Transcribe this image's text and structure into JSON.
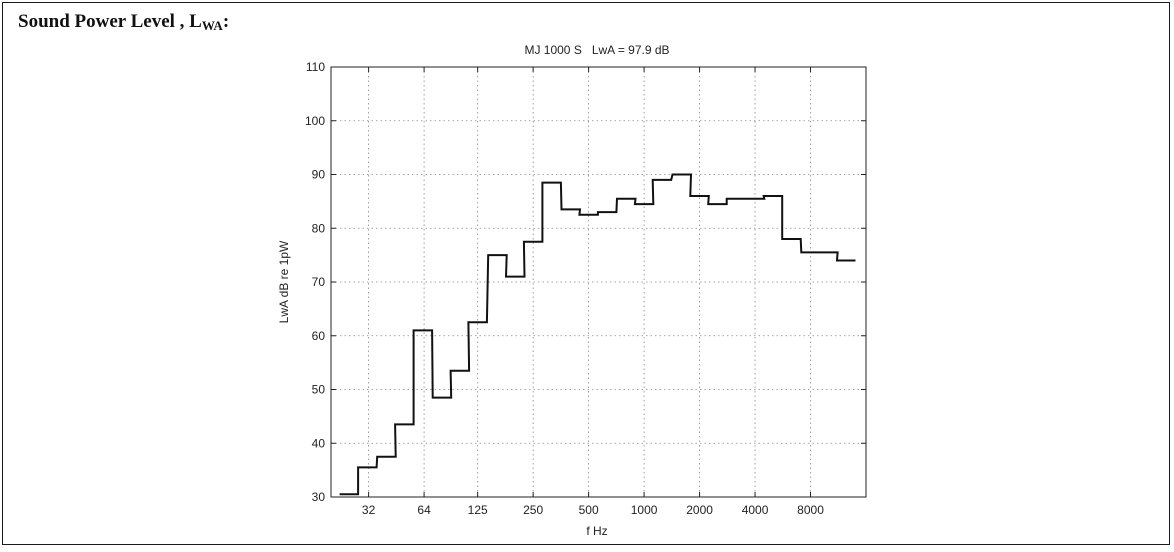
{
  "heading": {
    "text": "Sound Power Level , L",
    "subscript": "WA",
    "suffix": ":"
  },
  "chart_data": {
    "type": "line",
    "step": true,
    "title": "MJ 1000 S   LwA = 97.9 dB",
    "xlabel": "f Hz",
    "ylabel": "LwA dB re 1pW",
    "x_scale": "log2",
    "xlim_hz": [
      20,
      16000
    ],
    "ylim": [
      30,
      110
    ],
    "y_ticks": [
      30,
      40,
      50,
      60,
      70,
      80,
      90,
      100,
      110
    ],
    "y_tick_labels": [
      "30",
      "40",
      "50",
      "60",
      "70",
      "80",
      "90",
      "100",
      "110"
    ],
    "x_ticks": [
      32,
      64,
      125,
      250,
      500,
      1000,
      2000,
      4000,
      8000
    ],
    "x_tick_labels": [
      "32",
      "64",
      "125",
      "250",
      "500",
      "1000",
      "2000",
      "4000",
      "8000"
    ],
    "grid": true,
    "grid_style": "dotted",
    "line_color": "#111111",
    "series": [
      {
        "x": [
          25,
          31.5,
          40,
          50,
          63,
          80,
          100,
          125,
          160,
          200,
          250,
          315,
          400,
          500,
          630,
          800,
          1000,
          1250,
          1600,
          2000,
          2500,
          3150,
          4000,
          5000,
          6300,
          8000,
          10000,
          12500
        ],
        "values": [
          30.5,
          35.5,
          37.5,
          43.5,
          61.0,
          48.5,
          53.5,
          62.5,
          75.0,
          71.0,
          77.5,
          88.5,
          83.5,
          82.5,
          83.0,
          85.5,
          84.5,
          89.0,
          90.0,
          86.0,
          84.5,
          85.5,
          85.5,
          86.0,
          78.0,
          75.5,
          75.5,
          74.0
        ]
      }
    ]
  }
}
